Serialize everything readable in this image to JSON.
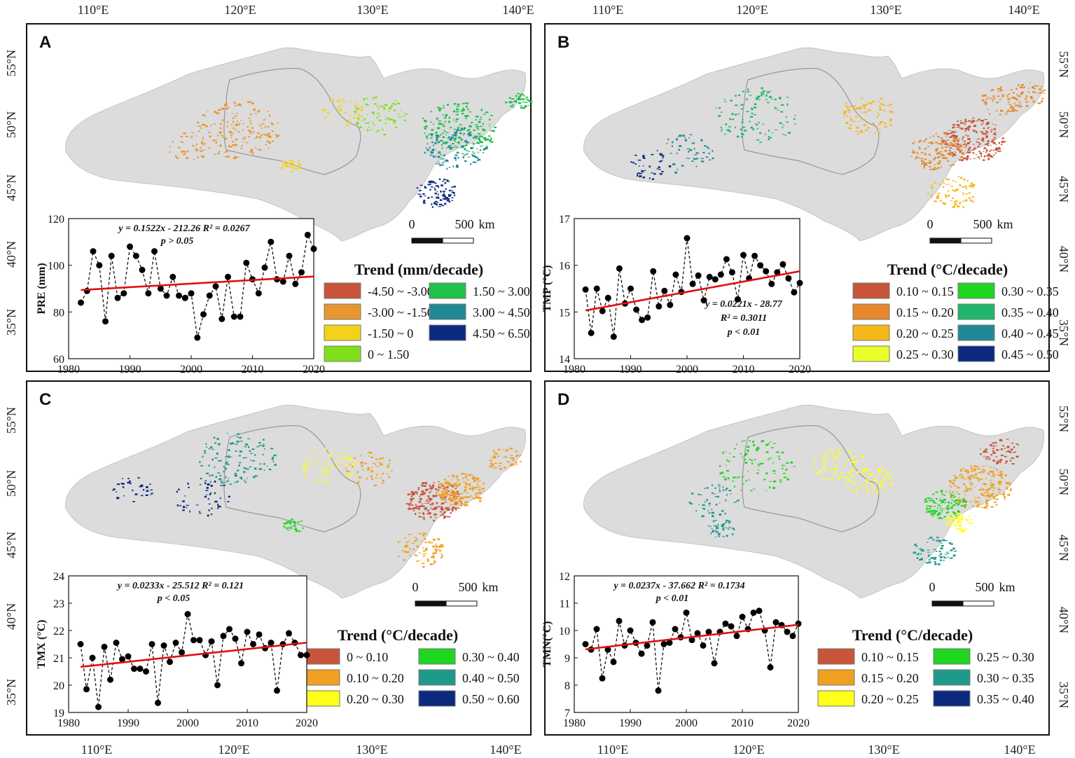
{
  "figure": {
    "lon_labels_top": [
      "110°E",
      "120°E",
      "130°E",
      "140°E"
    ],
    "lon_labels_bottom": [
      "110°E",
      "120°E",
      "130°E",
      "140°E"
    ],
    "lat_labels": [
      "55°N",
      "50°N",
      "45°N",
      "40°N",
      "35°N"
    ],
    "scale_bar": {
      "zero": "0",
      "distance": "500",
      "unit": "km"
    }
  },
  "panels": [
    {
      "id": "A",
      "legend_title": "Trend (mm/decade)",
      "legend_items": [
        {
          "label": "-4.50 ~ -3.00",
          "color": "#c8553a"
        },
        {
          "label": "-3.00 ~ -1.50",
          "color": "#e8962f"
        },
        {
          "label": "-1.50 ~ 0",
          "color": "#f5d21a"
        },
        {
          "label": "0 ~ 1.50",
          "color": "#7fe01a"
        },
        {
          "label": "1.50 ~ 3.00",
          "color": "#1fc24a"
        },
        {
          "label": "3.00 ~ 4.50",
          "color": "#1f8a96"
        },
        {
          "label": "4.50 ~ 6.50",
          "color": "#0c2a80"
        }
      ],
      "map_colors": [
        "#e8962f",
        "#f5d21a",
        "#7fe01a",
        "#1fc24a",
        "#1f8a96",
        "#0c2a80"
      ]
    },
    {
      "id": "B",
      "legend_title": "Trend (°C/decade)",
      "legend_items": [
        {
          "label": "0.10 ~ 0.15",
          "color": "#c8553a"
        },
        {
          "label": "0.15 ~ 0.20",
          "color": "#e8882a"
        },
        {
          "label": "0.20 ~ 0.25",
          "color": "#f5b81a"
        },
        {
          "label": "0.25 ~ 0.30",
          "color": "#e8ff2a"
        },
        {
          "label": "0.30 ~ 0.35",
          "color": "#1fd51f"
        },
        {
          "label": "0.35 ~ 0.40",
          "color": "#1fb56a"
        },
        {
          "label": "0.40 ~ 0.45",
          "color": "#1f8a96"
        },
        {
          "label": "0.45 ~ 0.50",
          "color": "#0c2a80"
        }
      ],
      "map_colors": [
        "#c8553a",
        "#e8882a",
        "#f5b81a",
        "#1fb56a",
        "#1f8a96",
        "#0c2a80"
      ]
    },
    {
      "id": "C",
      "legend_title": "Trend (°C/decade)",
      "legend_items": [
        {
          "label": "0 ~ 0.10",
          "color": "#c8553a"
        },
        {
          "label": "0.10 ~ 0.20",
          "color": "#f0a020"
        },
        {
          "label": "0.20 ~ 0.30",
          "color": "#ffff1a"
        },
        {
          "label": "0.30 ~ 0.40",
          "color": "#1fd51f"
        },
        {
          "label": "0.40 ~ 0.50",
          "color": "#1f9a8a"
        },
        {
          "label": "0.50 ~ 0.60",
          "color": "#0c2a80"
        }
      ],
      "map_colors": [
        "#c8553a",
        "#f0a020",
        "#ffff1a",
        "#1fd51f",
        "#1f9a8a",
        "#0c2a80"
      ]
    },
    {
      "id": "D",
      "legend_title": "Trend (°C/decade)",
      "legend_items": [
        {
          "label": "0.10 ~ 0.15",
          "color": "#c8553a"
        },
        {
          "label": "0.15 ~ 0.20",
          "color": "#f0a020"
        },
        {
          "label": "0.20 ~ 0.25",
          "color": "#ffff1a"
        },
        {
          "label": "0.25 ~ 0.30",
          "color": "#1fd51f"
        },
        {
          "label": "0.30 ~ 0.35",
          "color": "#1f9a8a"
        },
        {
          "label": "0.35 ~ 0.40",
          "color": "#0c2a80"
        }
      ],
      "map_colors": [
        "#c8553a",
        "#f0a020",
        "#ffff1a",
        "#1fd51f",
        "#1f9a8a",
        "#0c2a80"
      ]
    }
  ],
  "chart_data": [
    {
      "type": "line",
      "panel": "A",
      "ylabel": "PRE (mm)",
      "xlabel": "",
      "xlim": [
        1980,
        2020
      ],
      "ylim": [
        60,
        120
      ],
      "xticks": [
        1980,
        1990,
        2000,
        2010,
        2020
      ],
      "yticks": [
        60,
        80,
        100,
        120
      ],
      "x": [
        1982,
        1983,
        1984,
        1985,
        1986,
        1987,
        1988,
        1989,
        1990,
        1991,
        1992,
        1993,
        1994,
        1995,
        1996,
        1997,
        1998,
        1999,
        2000,
        2001,
        2002,
        2003,
        2004,
        2005,
        2006,
        2007,
        2008,
        2009,
        2010,
        2011,
        2012,
        2013,
        2014,
        2015,
        2016,
        2017,
        2018,
        2019,
        2020
      ],
      "y": [
        84,
        89,
        106,
        100,
        76,
        104,
        86,
        88,
        108,
        104,
        98,
        88,
        106,
        90,
        87,
        95,
        87,
        86,
        88,
        69,
        79,
        87,
        91,
        77,
        95,
        78,
        78,
        101,
        94,
        88,
        99,
        110,
        94,
        93,
        104,
        92,
        97,
        113,
        107
      ],
      "trend": {
        "slope": 0.1522,
        "intercept": -212.26
      },
      "equation": "y = 0.1522x - 212.26   R² = 0.0267",
      "pvalue": "p > 0.05"
    },
    {
      "type": "line",
      "panel": "B",
      "ylabel": "TMP (°C)",
      "xlabel": "",
      "xlim": [
        1980,
        2020
      ],
      "ylim": [
        14,
        17
      ],
      "xticks": [
        1980,
        1990,
        2000,
        2010,
        2020
      ],
      "yticks": [
        14,
        15,
        16,
        17
      ],
      "x": [
        1982,
        1983,
        1984,
        1985,
        1986,
        1987,
        1988,
        1989,
        1990,
        1991,
        1992,
        1993,
        1994,
        1995,
        1996,
        1997,
        1998,
        1999,
        2000,
        2001,
        2002,
        2003,
        2004,
        2005,
        2006,
        2007,
        2008,
        2009,
        2010,
        2011,
        2012,
        2013,
        2014,
        2015,
        2016,
        2017,
        2018,
        2019,
        2020
      ],
      "y": [
        15.48,
        14.55,
        15.5,
        15.02,
        15.3,
        14.47,
        15.93,
        15.18,
        15.5,
        15.05,
        14.83,
        14.88,
        15.87,
        15.12,
        15.45,
        15.15,
        15.8,
        15.43,
        16.58,
        15.6,
        15.78,
        15.25,
        15.75,
        15.7,
        15.8,
        16.13,
        15.85,
        15.27,
        16.22,
        15.72,
        16.2,
        16.0,
        15.87,
        15.6,
        15.85,
        16.02,
        15.72,
        15.42,
        15.62
      ],
      "trend": {
        "slope": 0.0221,
        "intercept": -28.77
      },
      "equation": "y = 0.0221x - 28.77",
      "r2": "R² = 0.3011",
      "pvalue": "p < 0.01"
    },
    {
      "type": "line",
      "panel": "C",
      "ylabel": "TMX (°C)",
      "xlabel": "",
      "xlim": [
        1980,
        2020
      ],
      "ylim": [
        19,
        24
      ],
      "xticks": [
        1980,
        1990,
        2000,
        2010,
        2020
      ],
      "yticks": [
        19,
        20,
        21,
        22,
        23,
        24
      ],
      "x": [
        1982,
        1983,
        1984,
        1985,
        1986,
        1987,
        1988,
        1989,
        1990,
        1991,
        1992,
        1993,
        1994,
        1995,
        1996,
        1997,
        1998,
        1999,
        2000,
        2001,
        2002,
        2003,
        2004,
        2005,
        2006,
        2007,
        2008,
        2009,
        2010,
        2011,
        2012,
        2013,
        2014,
        2015,
        2016,
        2017,
        2018,
        2019,
        2020
      ],
      "y": [
        21.5,
        19.85,
        21.0,
        19.2,
        21.4,
        20.2,
        21.55,
        20.95,
        21.05,
        20.6,
        20.6,
        20.5,
        21.5,
        19.35,
        21.45,
        20.85,
        21.55,
        21.2,
        22.6,
        21.65,
        21.65,
        21.1,
        21.6,
        20.0,
        21.8,
        22.05,
        21.7,
        20.8,
        21.95,
        21.5,
        21.85,
        21.35,
        21.55,
        19.8,
        21.5,
        21.9,
        21.55,
        21.1,
        21.1
      ],
      "trend": {
        "slope": 0.0233,
        "intercept": -25.512
      },
      "equation": "y = 0.0233x - 25.512   R² = 0.121",
      "pvalue": "p < 0.05"
    },
    {
      "type": "line",
      "panel": "D",
      "ylabel": "TMN(°C)",
      "xlabel": "",
      "xlim": [
        1980,
        2020
      ],
      "ylim": [
        7,
        12
      ],
      "xticks": [
        1980,
        1990,
        2000,
        2010,
        2020
      ],
      "yticks": [
        7,
        8,
        9,
        10,
        11,
        12
      ],
      "x": [
        1982,
        1983,
        1984,
        1985,
        1986,
        1987,
        1988,
        1989,
        1990,
        1991,
        1992,
        1993,
        1994,
        1995,
        1996,
        1997,
        1998,
        1999,
        2000,
        2001,
        2002,
        2003,
        2004,
        2005,
        2006,
        2007,
        2008,
        2009,
        2010,
        2011,
        2012,
        2013,
        2014,
        2015,
        2016,
        2017,
        2018,
        2019,
        2020
      ],
      "y": [
        9.5,
        9.3,
        10.05,
        8.25,
        9.3,
        8.85,
        10.35,
        9.45,
        10.0,
        9.55,
        9.15,
        9.45,
        10.3,
        7.8,
        9.5,
        9.55,
        10.05,
        9.75,
        10.65,
        9.65,
        9.9,
        9.45,
        9.95,
        8.8,
        9.95,
        10.25,
        10.15,
        9.8,
        10.5,
        10.05,
        10.65,
        10.72,
        10.0,
        8.65,
        10.3,
        10.2,
        9.95,
        9.8,
        10.25
      ],
      "trend": {
        "slope": 0.0237,
        "intercept": -37.662
      },
      "equation": "y = 0.0237x - 37.662   R² = 0.1734",
      "pvalue": "p < 0.01"
    }
  ]
}
